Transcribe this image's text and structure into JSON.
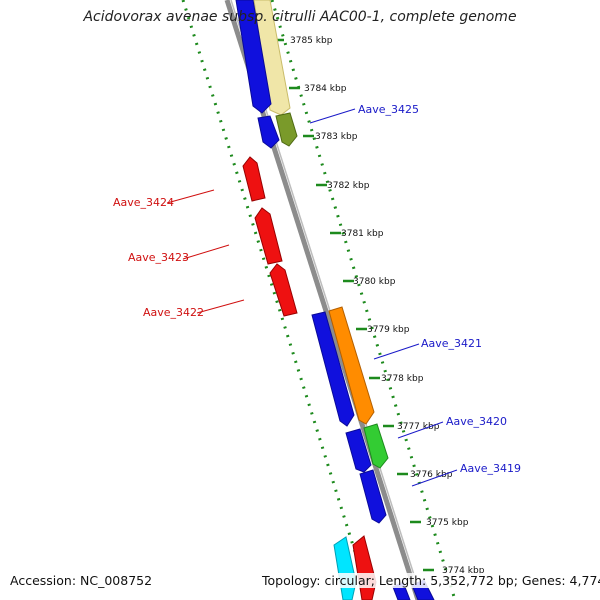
{
  "title": "Acidovorax avenae subsp. citrulli AAC00-1, complete genome",
  "footer": {
    "accession": "Accession: NC_008752",
    "topology": "Topology: circular; Length: 5,352,772 bp; Genes: 4,774"
  },
  "colors": {
    "backbone": "#8c8c8c",
    "tick_green": "#1d8a1d",
    "forward_label": "#1a1ac8",
    "reverse_label": "#d01010"
  },
  "kbp_labels": [
    "3785 kbp",
    "3784 kbp",
    "3783 kbp",
    "3782 kbp",
    "3781 kbp",
    "3780 kbp",
    "3779 kbp",
    "3778 kbp",
    "3777 kbp",
    "3776 kbp",
    "3775 kbp",
    "3774 kbp"
  ],
  "genes": [
    {
      "name": "Aave_3425",
      "strand": "forward",
      "color": "#7a9a2a"
    },
    {
      "name": "Aave_3424",
      "strand": "reverse",
      "color": "#ee1111"
    },
    {
      "name": "Aave_3423",
      "strand": "reverse",
      "color": "#ee1111"
    },
    {
      "name": "Aave_3422",
      "strand": "reverse",
      "color": "#ee1111"
    },
    {
      "name": "Aave_3421",
      "strand": "forward",
      "color": "#ff8c00"
    },
    {
      "name": "Aave_3420",
      "strand": "forward",
      "color": "#33cc33"
    },
    {
      "name": "Aave_3419",
      "strand": "forward",
      "color": "#1010dd"
    }
  ]
}
